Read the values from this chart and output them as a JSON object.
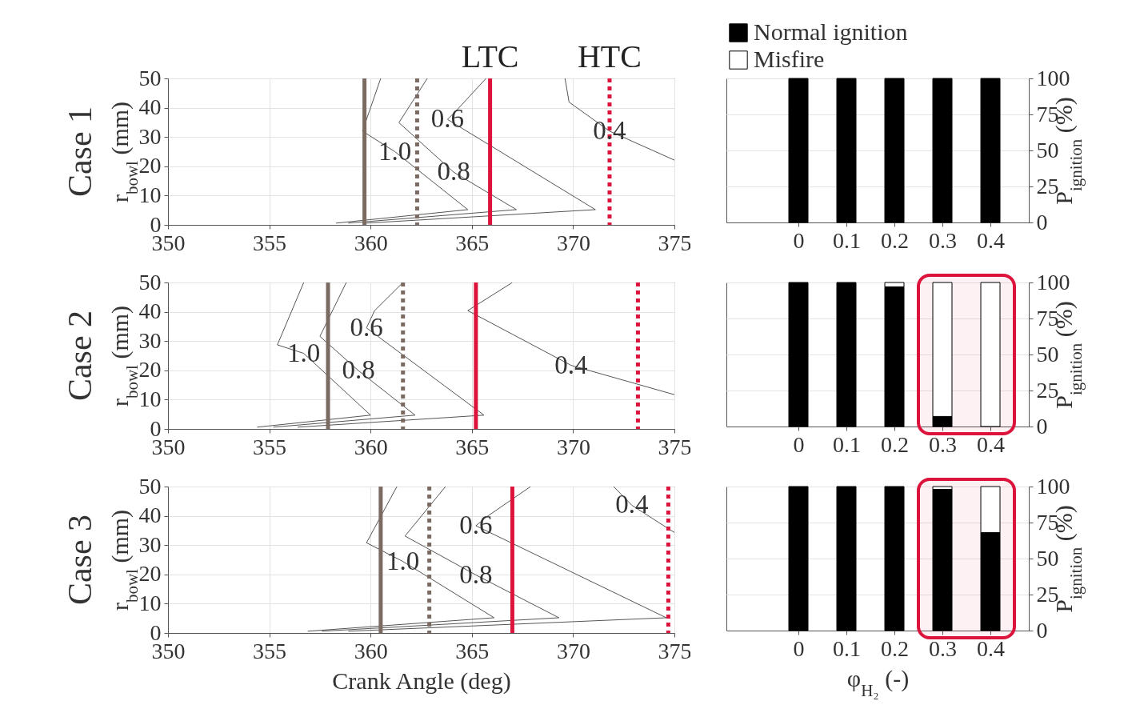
{
  "chart_data": [
    {
      "type": "line",
      "title": "Case 1",
      "ylabel": "r$_{bowl}$ (mm)",
      "xlim": [
        350,
        375
      ],
      "xticks": [
        350,
        355,
        360,
        365,
        370,
        375
      ],
      "ylim": [
        0,
        50
      ],
      "yticks": [
        0,
        10,
        20,
        30,
        40,
        50
      ],
      "grid": true,
      "series": [
        {
          "name": "1.0",
          "color": "#555555",
          "x": [
            360.5,
            359.6,
            361.2,
            364.8,
            358.3
          ],
          "values": [
            50,
            32,
            25,
            5.2,
            0.6
          ]
        },
        {
          "name": "0.8",
          "color": "#555555",
          "x": [
            362.8,
            361.4,
            364.1,
            367.2,
            358.9
          ],
          "values": [
            50,
            34.9,
            18,
            5.2,
            0.6
          ]
        },
        {
          "name": "0.6",
          "color": "#555555",
          "x": [
            365.7,
            364.3,
            363.8,
            371.1,
            359.8
          ],
          "values": [
            50,
            39.5,
            36,
            5.2,
            0.6
          ]
        },
        {
          "name": "0.4",
          "color": "#555555",
          "x": [
            369.6,
            369.8,
            371.8,
            375
          ],
          "values": [
            50,
            41.9,
            32,
            22.1
          ]
        }
      ],
      "ref_lines": [
        {
          "axis": "x",
          "value": 359.7,
          "label": null,
          "color": "#7a6a62",
          "line_style": "solid"
        },
        {
          "axis": "x",
          "value": 362.3,
          "label": null,
          "color": "#7a6a62",
          "line_style": "dotted"
        },
        {
          "axis": "x",
          "value": 365.9,
          "label": "LTC",
          "color": "#dc143c",
          "line_style": "solid"
        },
        {
          "axis": "x",
          "value": 371.8,
          "label": "HTC",
          "color": "#dc143c",
          "line_style": "dotted"
        }
      ]
    },
    {
      "type": "bar",
      "stacked": true,
      "ylabel": "P$_{ignition}$ (%)",
      "x": [
        0,
        0.1,
        0.2,
        0.3,
        0.4
      ],
      "xlim": [
        -0.15,
        0.48
      ],
      "xticks": [
        0,
        0.1,
        0.2,
        0.3,
        0.4
      ],
      "ylim": [
        0,
        100
      ],
      "yticks": [
        0,
        25,
        50,
        75,
        100
      ],
      "grid": "y",
      "legend": "top",
      "series": [
        {
          "name": "Normal ignition",
          "color": "#000000",
          "values": [
            100,
            100,
            100,
            100,
            100
          ]
        },
        {
          "name": "Misfire",
          "color": "#ffffff",
          "values": [
            0,
            0,
            0,
            0,
            0
          ]
        }
      ]
    },
    {
      "type": "line",
      "title": "Case 2",
      "ylabel": "r$_{bowl}$ (mm)",
      "xlim": [
        350,
        375
      ],
      "xticks": [
        350,
        355,
        360,
        365,
        370,
        375
      ],
      "ylim": [
        0,
        50
      ],
      "yticks": [
        0,
        10,
        20,
        30,
        40,
        50
      ],
      "grid": true,
      "series": [
        {
          "name": "1.0",
          "color": "#555555",
          "x": [
            356.7,
            355.4,
            356.7,
            360.0,
            354.4
          ],
          "values": [
            50,
            28.7,
            25.8,
            4.7,
            0.6
          ]
        },
        {
          "name": "0.8",
          "color": "#555555",
          "x": [
            358.8,
            357.5,
            359.4,
            362.2,
            355.2
          ],
          "values": [
            50,
            31.6,
            19.9,
            4.7,
            0.6
          ]
        },
        {
          "name": "0.6",
          "color": "#555555",
          "x": [
            361.6,
            360.2,
            359.8,
            365.6,
            356.4
          ],
          "values": [
            50,
            40.4,
            34.5,
            4.7,
            0.6
          ]
        },
        {
          "name": "0.4",
          "color": "#555555",
          "x": [
            367.0,
            364.8,
            369.9,
            375
          ],
          "values": [
            50,
            40.4,
            21.7,
            11.7
          ]
        }
      ],
      "ref_lines": [
        {
          "axis": "x",
          "value": 357.9,
          "label": null,
          "color": "#7a6a62",
          "line_style": "solid"
        },
        {
          "axis": "x",
          "value": 361.6,
          "label": null,
          "color": "#7a6a62",
          "line_style": "dotted"
        },
        {
          "axis": "x",
          "value": 365.2,
          "label": null,
          "color": "#dc143c",
          "line_style": "solid"
        },
        {
          "axis": "x",
          "value": 373.2,
          "label": null,
          "color": "#dc143c",
          "line_style": "dotted"
        }
      ]
    },
    {
      "type": "bar",
      "stacked": true,
      "ylabel": "P$_{ignition}$ (%)",
      "x": [
        0,
        0.1,
        0.2,
        0.3,
        0.4
      ],
      "xlim": [
        -0.15,
        0.48
      ],
      "xticks": [
        0,
        0.1,
        0.2,
        0.3,
        0.4
      ],
      "ylim": [
        0,
        100
      ],
      "yticks": [
        0,
        25,
        50,
        75,
        100
      ],
      "grid": "y",
      "bands": [
        {
          "axis": "x",
          "from": 0.25,
          "to": 0.45,
          "label": null,
          "color": "#dc143c"
        }
      ],
      "series": [
        {
          "color": "#000000",
          "values": [
            100,
            100,
            97,
            7,
            0
          ]
        },
        {
          "color": "#ffffff",
          "values": [
            0,
            0,
            3,
            93,
            100
          ]
        }
      ]
    },
    {
      "type": "line",
      "title": "Case 3",
      "xlabel": "Crank Angle (deg)",
      "ylabel": "r$_{bowl}$ (mm)",
      "xlim": [
        350,
        375
      ],
      "xticks": [
        350,
        355,
        360,
        365,
        370,
        375
      ],
      "ylim": [
        0,
        50
      ],
      "yticks": [
        0,
        10,
        20,
        30,
        40,
        50
      ],
      "grid": true,
      "series": [
        {
          "name": "1.0",
          "color": "#555555",
          "x": [
            361.3,
            359.8,
            361.6,
            366.1,
            356.9
          ],
          "values": [
            50,
            30.8,
            24.4,
            5.2,
            0.6
          ]
        },
        {
          "name": "0.8",
          "color": "#555555",
          "x": [
            363.7,
            361.7,
            365.2,
            369.3,
            357.6
          ],
          "values": [
            50,
            33.1,
            19.8,
            5.2,
            0.6
          ]
        },
        {
          "name": "0.6",
          "color": "#555555",
          "x": [
            367.9,
            365.7,
            365.2,
            374.6,
            358.9
          ],
          "values": [
            50,
            39.5,
            36.6,
            5.2,
            0.6
          ]
        },
        {
          "name": "0.4",
          "color": "#555555",
          "x": [
            372.0,
            372.9,
            375
          ],
          "values": [
            50,
            43.6,
            34.3
          ]
        }
      ],
      "ref_lines": [
        {
          "axis": "x",
          "value": 360.5,
          "label": null,
          "color": "#7a6a62",
          "line_style": "solid"
        },
        {
          "axis": "x",
          "value": 362.9,
          "label": null,
          "color": "#7a6a62",
          "line_style": "dotted"
        },
        {
          "axis": "x",
          "value": 367.0,
          "label": null,
          "color": "#dc143c",
          "line_style": "solid"
        },
        {
          "axis": "x",
          "value": 374.7,
          "label": null,
          "color": "#dc143c",
          "line_style": "dotted"
        }
      ]
    },
    {
      "type": "bar",
      "stacked": true,
      "xlabel": "φ$_{H₂}$ (-)",
      "ylabel": "P$_{ignition}$ (%)",
      "x": [
        0,
        0.1,
        0.2,
        0.3,
        0.4
      ],
      "xlim": [
        -0.15,
        0.48
      ],
      "xticks": [
        0,
        0.1,
        0.2,
        0.3,
        0.4
      ],
      "ylim": [
        0,
        100
      ],
      "yticks": [
        0,
        25,
        50,
        75,
        100
      ],
      "grid": "y",
      "bands": [
        {
          "axis": "x",
          "from": 0.25,
          "to": 0.45,
          "label": null,
          "color": "#dc143c"
        }
      ],
      "series": [
        {
          "color": "#000000",
          "values": [
            100,
            100,
            100,
            98,
            68
          ]
        },
        {
          "color": "#ffffff",
          "values": [
            0,
            0,
            0,
            2,
            32
          ]
        }
      ]
    }
  ]
}
